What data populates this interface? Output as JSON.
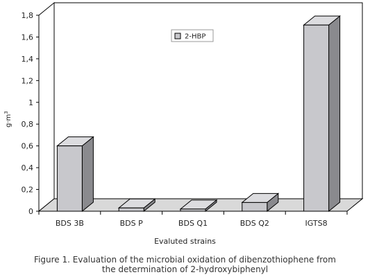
{
  "chart_data": {
    "type": "bar",
    "categories": [
      "BDS 3B",
      "BDS P",
      "BDS Q1",
      "BDS Q2",
      "IGTS8"
    ],
    "series": [
      {
        "name": "2-HBP",
        "values": [
          0.6,
          0.03,
          0.02,
          0.08,
          1.71
        ]
      }
    ],
    "xlabel": "Evaluted strains",
    "ylabel": "g·m",
    "ylabel_superscript": "3",
    "ylim": [
      0,
      1.8
    ],
    "yticks": [
      "0",
      "0,2",
      "0,4",
      "0,6",
      "0,8",
      "1",
      "1,2",
      "1,4",
      "1,6",
      "1,8"
    ],
    "legend_position": "top-center",
    "grid": false,
    "style": "3d",
    "colors": {
      "bar_front": "#c8c8cc",
      "bar_side": "#8a8a8e",
      "bar_top": "#dcdcdf",
      "floor": "#d9d9d9",
      "outline": "#000000"
    }
  },
  "caption": {
    "line1": "Figure 1.  Evaluation of the microbial oxidation of dibenzothiophene from",
    "line2": "the determination of 2-hydroxybiphenyl"
  }
}
